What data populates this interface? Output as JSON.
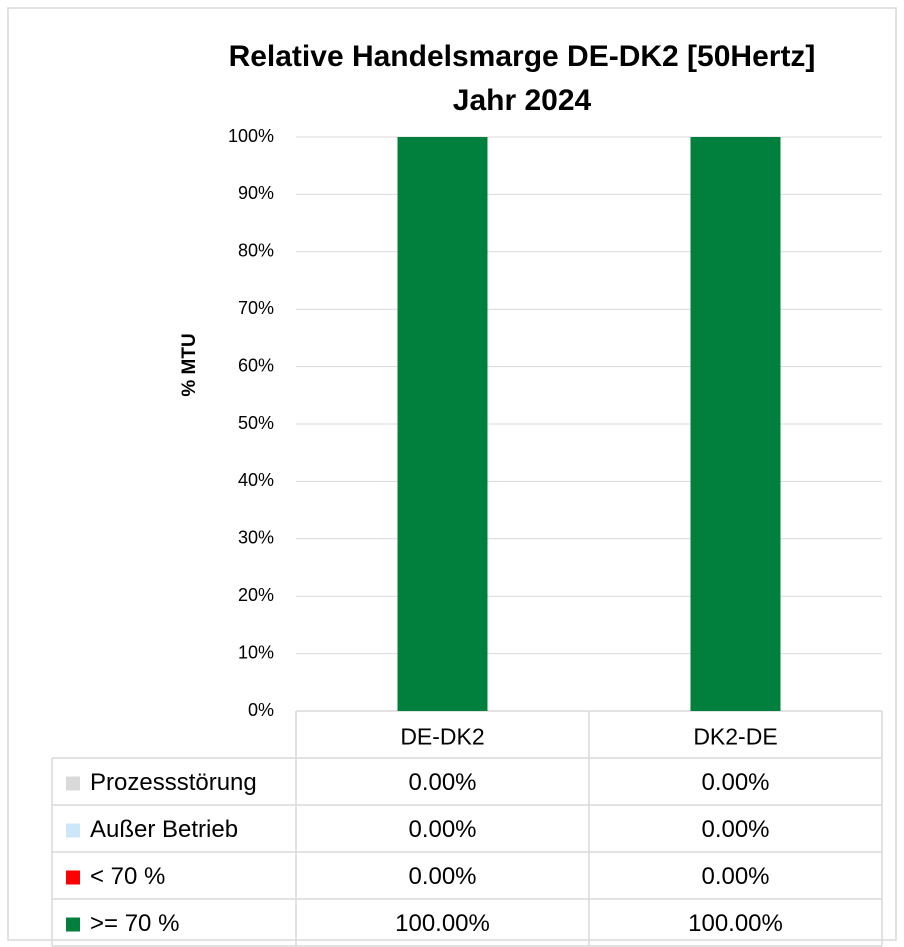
{
  "chart_data": {
    "type": "stacked_bar",
    "title": "Relative Handelsmarge DE-DK2 [50Hertz]",
    "subtitle": "Jahr 2024",
    "y_label": "% MTU",
    "categories": [
      "DE-DK2",
      "DK2-DE"
    ],
    "series": [
      {
        "name": "Prozessstörung",
        "color": "#d9d9d9",
        "values": [
          0,
          0
        ],
        "value_labels": [
          "0.00%",
          "0.00%"
        ]
      },
      {
        "name": "Außer Betrieb",
        "color": "#cce8f8",
        "values": [
          0,
          0
        ],
        "value_labels": [
          "0.00%",
          "0.00%"
        ]
      },
      {
        "name": "< 70 %",
        "color": "#ff0000",
        "values": [
          0,
          0
        ],
        "value_labels": [
          "0.00%",
          "0.00%"
        ]
      },
      {
        "name": ">= 70 %",
        "color": "#00803c",
        "values": [
          100,
          100
        ],
        "value_labels": [
          "100.00%",
          "100.00%"
        ]
      }
    ],
    "ylim": [
      0,
      100
    ],
    "yticks": [
      {
        "value": 0,
        "label": "0%"
      },
      {
        "value": 10,
        "label": "10%"
      },
      {
        "value": 20,
        "label": "20%"
      },
      {
        "value": 30,
        "label": "30%"
      },
      {
        "value": 40,
        "label": "40%"
      },
      {
        "value": 50,
        "label": "50%"
      },
      {
        "value": 60,
        "label": "60%"
      },
      {
        "value": 70,
        "label": "70%"
      },
      {
        "value": 80,
        "label": "80%"
      },
      {
        "value": 90,
        "label": "90%"
      },
      {
        "value": 100,
        "label": "100%"
      }
    ],
    "grid": true
  }
}
